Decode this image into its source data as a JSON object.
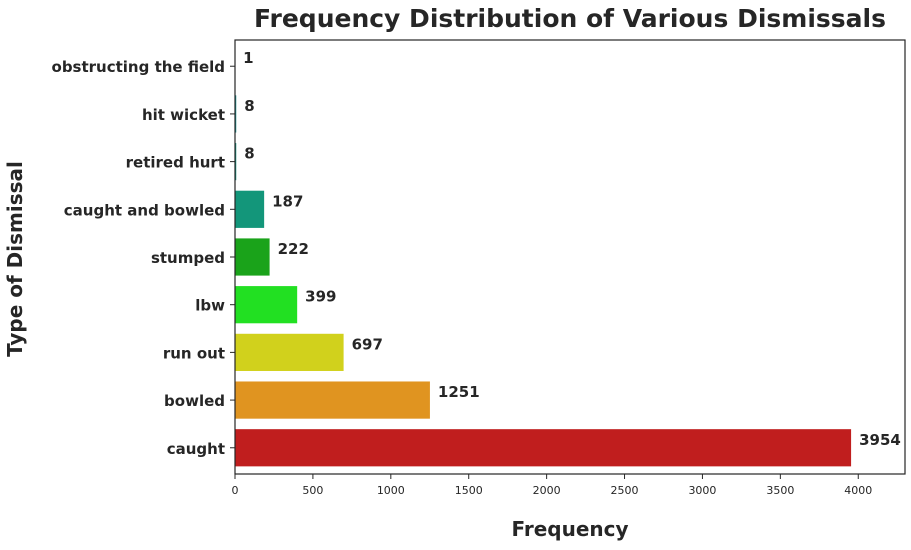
{
  "chart_data": {
    "type": "bar",
    "orientation": "horizontal",
    "title": "Frequency Distribution of Various Dismissals",
    "xlabel": "Frequency",
    "ylabel": "Type of Dismissal",
    "categories": [
      "obstructing the field",
      "hit wicket",
      "retired hurt",
      "caught and bowled",
      "stumped",
      "lbw",
      "run out",
      "bowled",
      "caught"
    ],
    "values": [
      1,
      8,
      8,
      187,
      222,
      399,
      697,
      1251,
      3954
    ],
    "data_labels": [
      "1",
      "8",
      "8",
      "187",
      "222",
      "399",
      "697",
      "1251",
      "3954"
    ],
    "colors": [
      "#1a9e9e",
      "#128a8a",
      "#0d8c7a",
      "#13967a",
      "#1aa31a",
      "#22e022",
      "#d1d11c",
      "#e09420",
      "#c01e1e"
    ],
    "xlim": [
      0,
      4300
    ],
    "xticks": [
      0,
      500,
      1000,
      1500,
      2000,
      2500,
      3000,
      3500,
      4000
    ],
    "xtick_labels": [
      "0",
      "500",
      "1000",
      "1500",
      "2000",
      "2500",
      "3000",
      "3500",
      "4000"
    ],
    "grid": false,
    "legend": "none"
  }
}
